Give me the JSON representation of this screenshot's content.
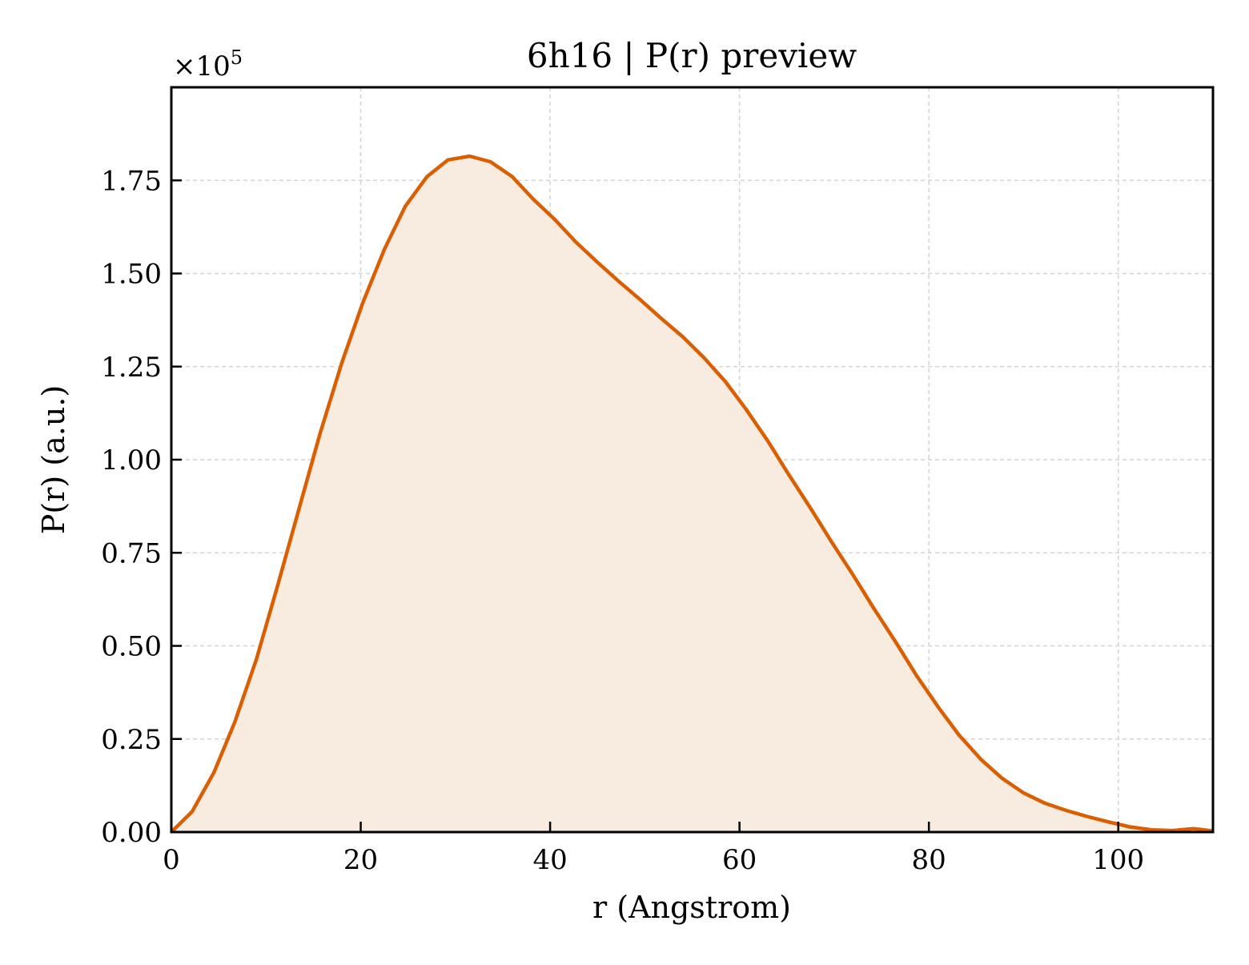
{
  "chart_data": {
    "type": "area",
    "title": "6h16 | P(r) preview",
    "xlabel": "r (Angstrom)",
    "ylabel": "P(r) (a.u.)",
    "y_multiplier_base": "×10",
    "y_multiplier_exp": "5",
    "xlim": [
      0,
      110
    ],
    "ylim": [
      0,
      2.0
    ],
    "xticks": [
      0,
      20,
      40,
      60,
      80,
      100
    ],
    "xtick_labels": [
      "0",
      "20",
      "40",
      "60",
      "80",
      "100"
    ],
    "yticks": [
      0,
      0.25,
      0.5,
      0.75,
      1.0,
      1.25,
      1.5,
      1.75
    ],
    "ytick_labels": [
      "0.00",
      "0.25",
      "0.50",
      "0.75",
      "1.00",
      "1.25",
      "1.50",
      "1.75"
    ],
    "grid": true,
    "line_color": "#d95f02",
    "fill_color": "#f8ebe0",
    "series": [
      {
        "x": [
          0,
          2.2,
          4.5,
          6.7,
          9.0,
          11.2,
          13.5,
          15.7,
          18.0,
          20.2,
          22.5,
          24.7,
          27.0,
          29.2,
          31.5,
          33.7,
          36.0,
          38.2,
          40.5,
          42.7,
          45.0,
          47.2,
          49.5,
          51.7,
          54.0,
          56.2,
          58.5,
          60.7,
          63.0,
          65.2,
          67.5,
          69.7,
          72.0,
          74.2,
          76.5,
          78.7,
          81.0,
          83.2,
          85.5,
          87.7,
          90.0,
          92.2,
          94.5,
          96.7,
          99.0,
          101.2,
          103.5,
          105.7,
          108.0,
          110.0
        ],
        "y": [
          0.0,
          0.055,
          0.16,
          0.295,
          0.465,
          0.66,
          0.87,
          1.07,
          1.26,
          1.42,
          1.565,
          1.68,
          1.76,
          1.805,
          1.815,
          1.8,
          1.76,
          1.7,
          1.645,
          1.585,
          1.53,
          1.48,
          1.43,
          1.38,
          1.33,
          1.275,
          1.21,
          1.135,
          1.05,
          0.96,
          0.87,
          0.78,
          0.69,
          0.6,
          0.51,
          0.42,
          0.335,
          0.26,
          0.195,
          0.145,
          0.105,
          0.078,
          0.058,
          0.042,
          0.027,
          0.014,
          0.006,
          0.004,
          0.009,
          0.003
        ]
      }
    ]
  }
}
